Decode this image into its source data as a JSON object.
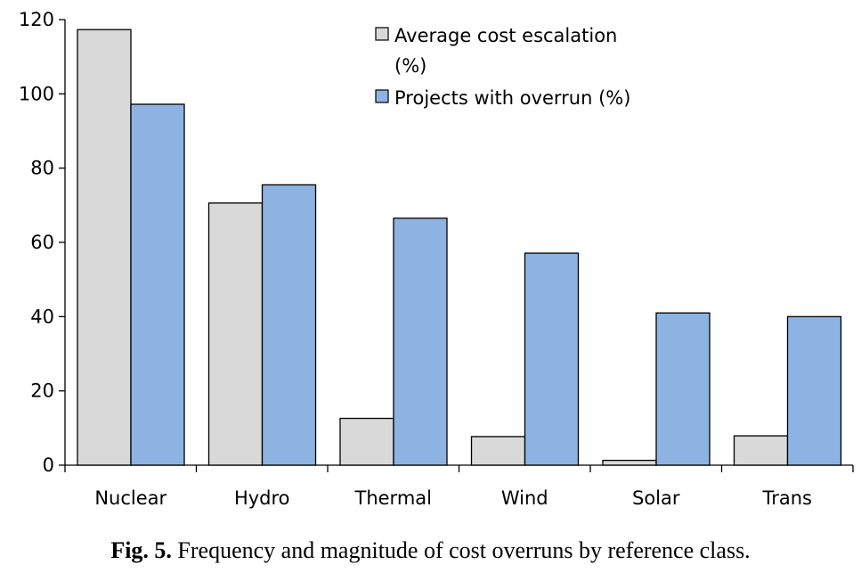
{
  "chart_data": {
    "type": "bar",
    "categories": [
      "Nuclear",
      "Hydro",
      "Thermal",
      "Wind",
      "Solar",
      "Trans"
    ],
    "series": [
      {
        "name_lines": [
          "Average cost escalation",
          "(%)"
        ],
        "values": [
          117.3,
          70.6,
          12.6,
          7.7,
          1.3,
          7.9
        ],
        "color": "#d9d9d9"
      },
      {
        "name_lines": [
          "Projects with overrun (%)"
        ],
        "values": [
          97.2,
          75.5,
          66.5,
          57.1,
          41.0,
          40.0
        ],
        "color": "#8db3e2"
      }
    ],
    "ylim": [
      0,
      120
    ],
    "yticks": [
      "0",
      "20",
      "40",
      "60",
      "80",
      "100",
      "120"
    ],
    "legend_position": "top-right",
    "grid": false
  },
  "caption": {
    "label": "Fig. 5.",
    "text": "Frequency and magnitude of cost overruns by reference class."
  }
}
